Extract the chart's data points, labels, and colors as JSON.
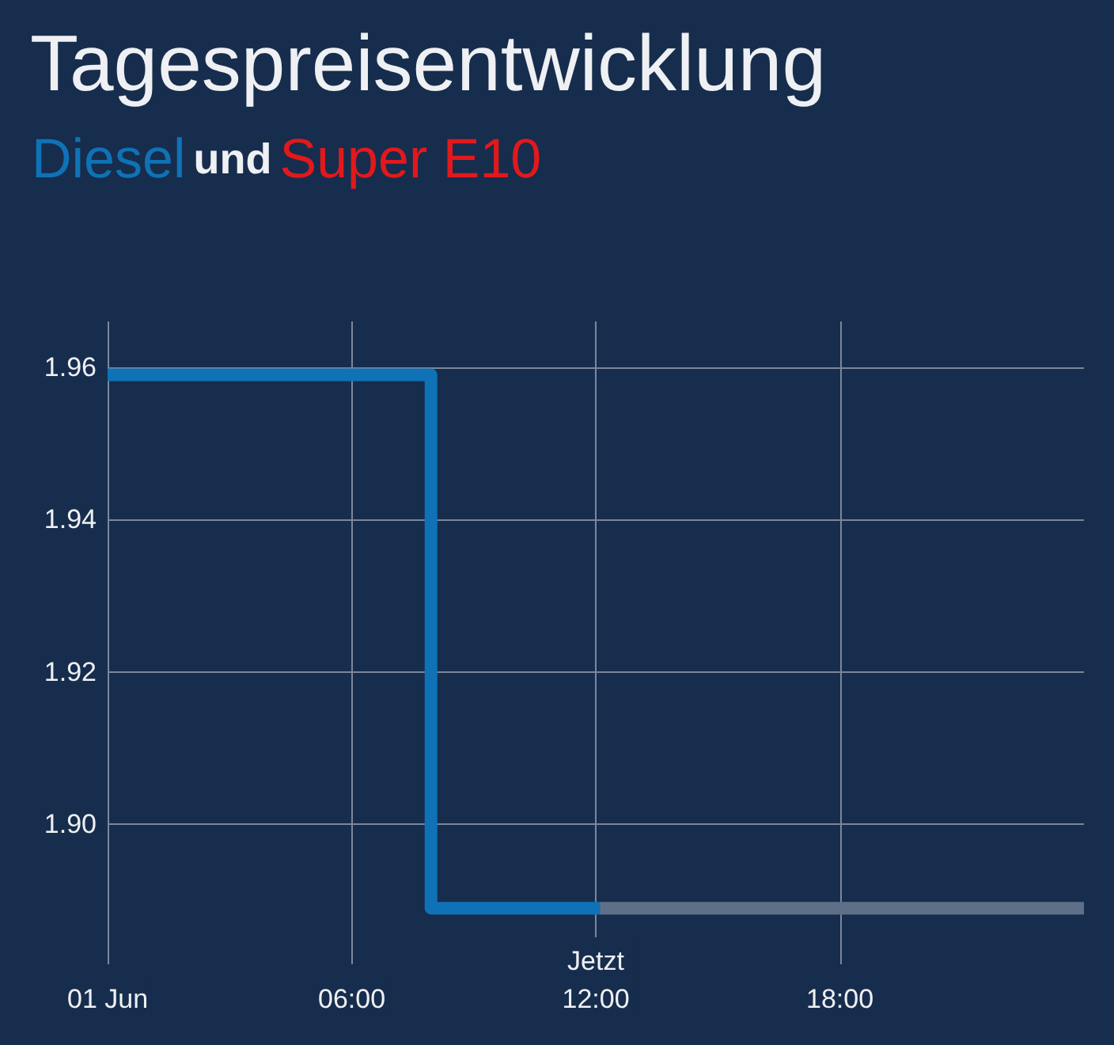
{
  "chart_data": {
    "type": "step",
    "title": "Tagespreisentwicklung",
    "annotations": [
      "und"
    ],
    "series": [
      {
        "name": "Diesel",
        "color": "#0f72b6",
        "x": [
          0,
          7.95,
          12.1
        ],
        "values": [
          1.959,
          1.889,
          1.889
        ]
      },
      {
        "color": "#5f6f87",
        "x": [
          12.1,
          24
        ],
        "values": [
          1.889,
          1.889
        ]
      },
      {
        "name": "Super E10",
        "color": "#e1191c"
      }
    ],
    "xlim": [
      0,
      24
    ],
    "xticks": [
      {
        "value": 0,
        "label": "01 Jun"
      },
      {
        "value": 6,
        "label": "06:00"
      },
      {
        "value": 12,
        "label": "Jetzt\n12:00"
      },
      {
        "value": 18,
        "label": "18:00"
      }
    ],
    "ylim": [
      1.886,
      1.966
    ],
    "yticks": [
      {
        "value": 1.9,
        "label": "1.90"
      },
      1.92,
      1.94,
      1.96
    ],
    "grid": true,
    "legend": "top left"
  }
}
